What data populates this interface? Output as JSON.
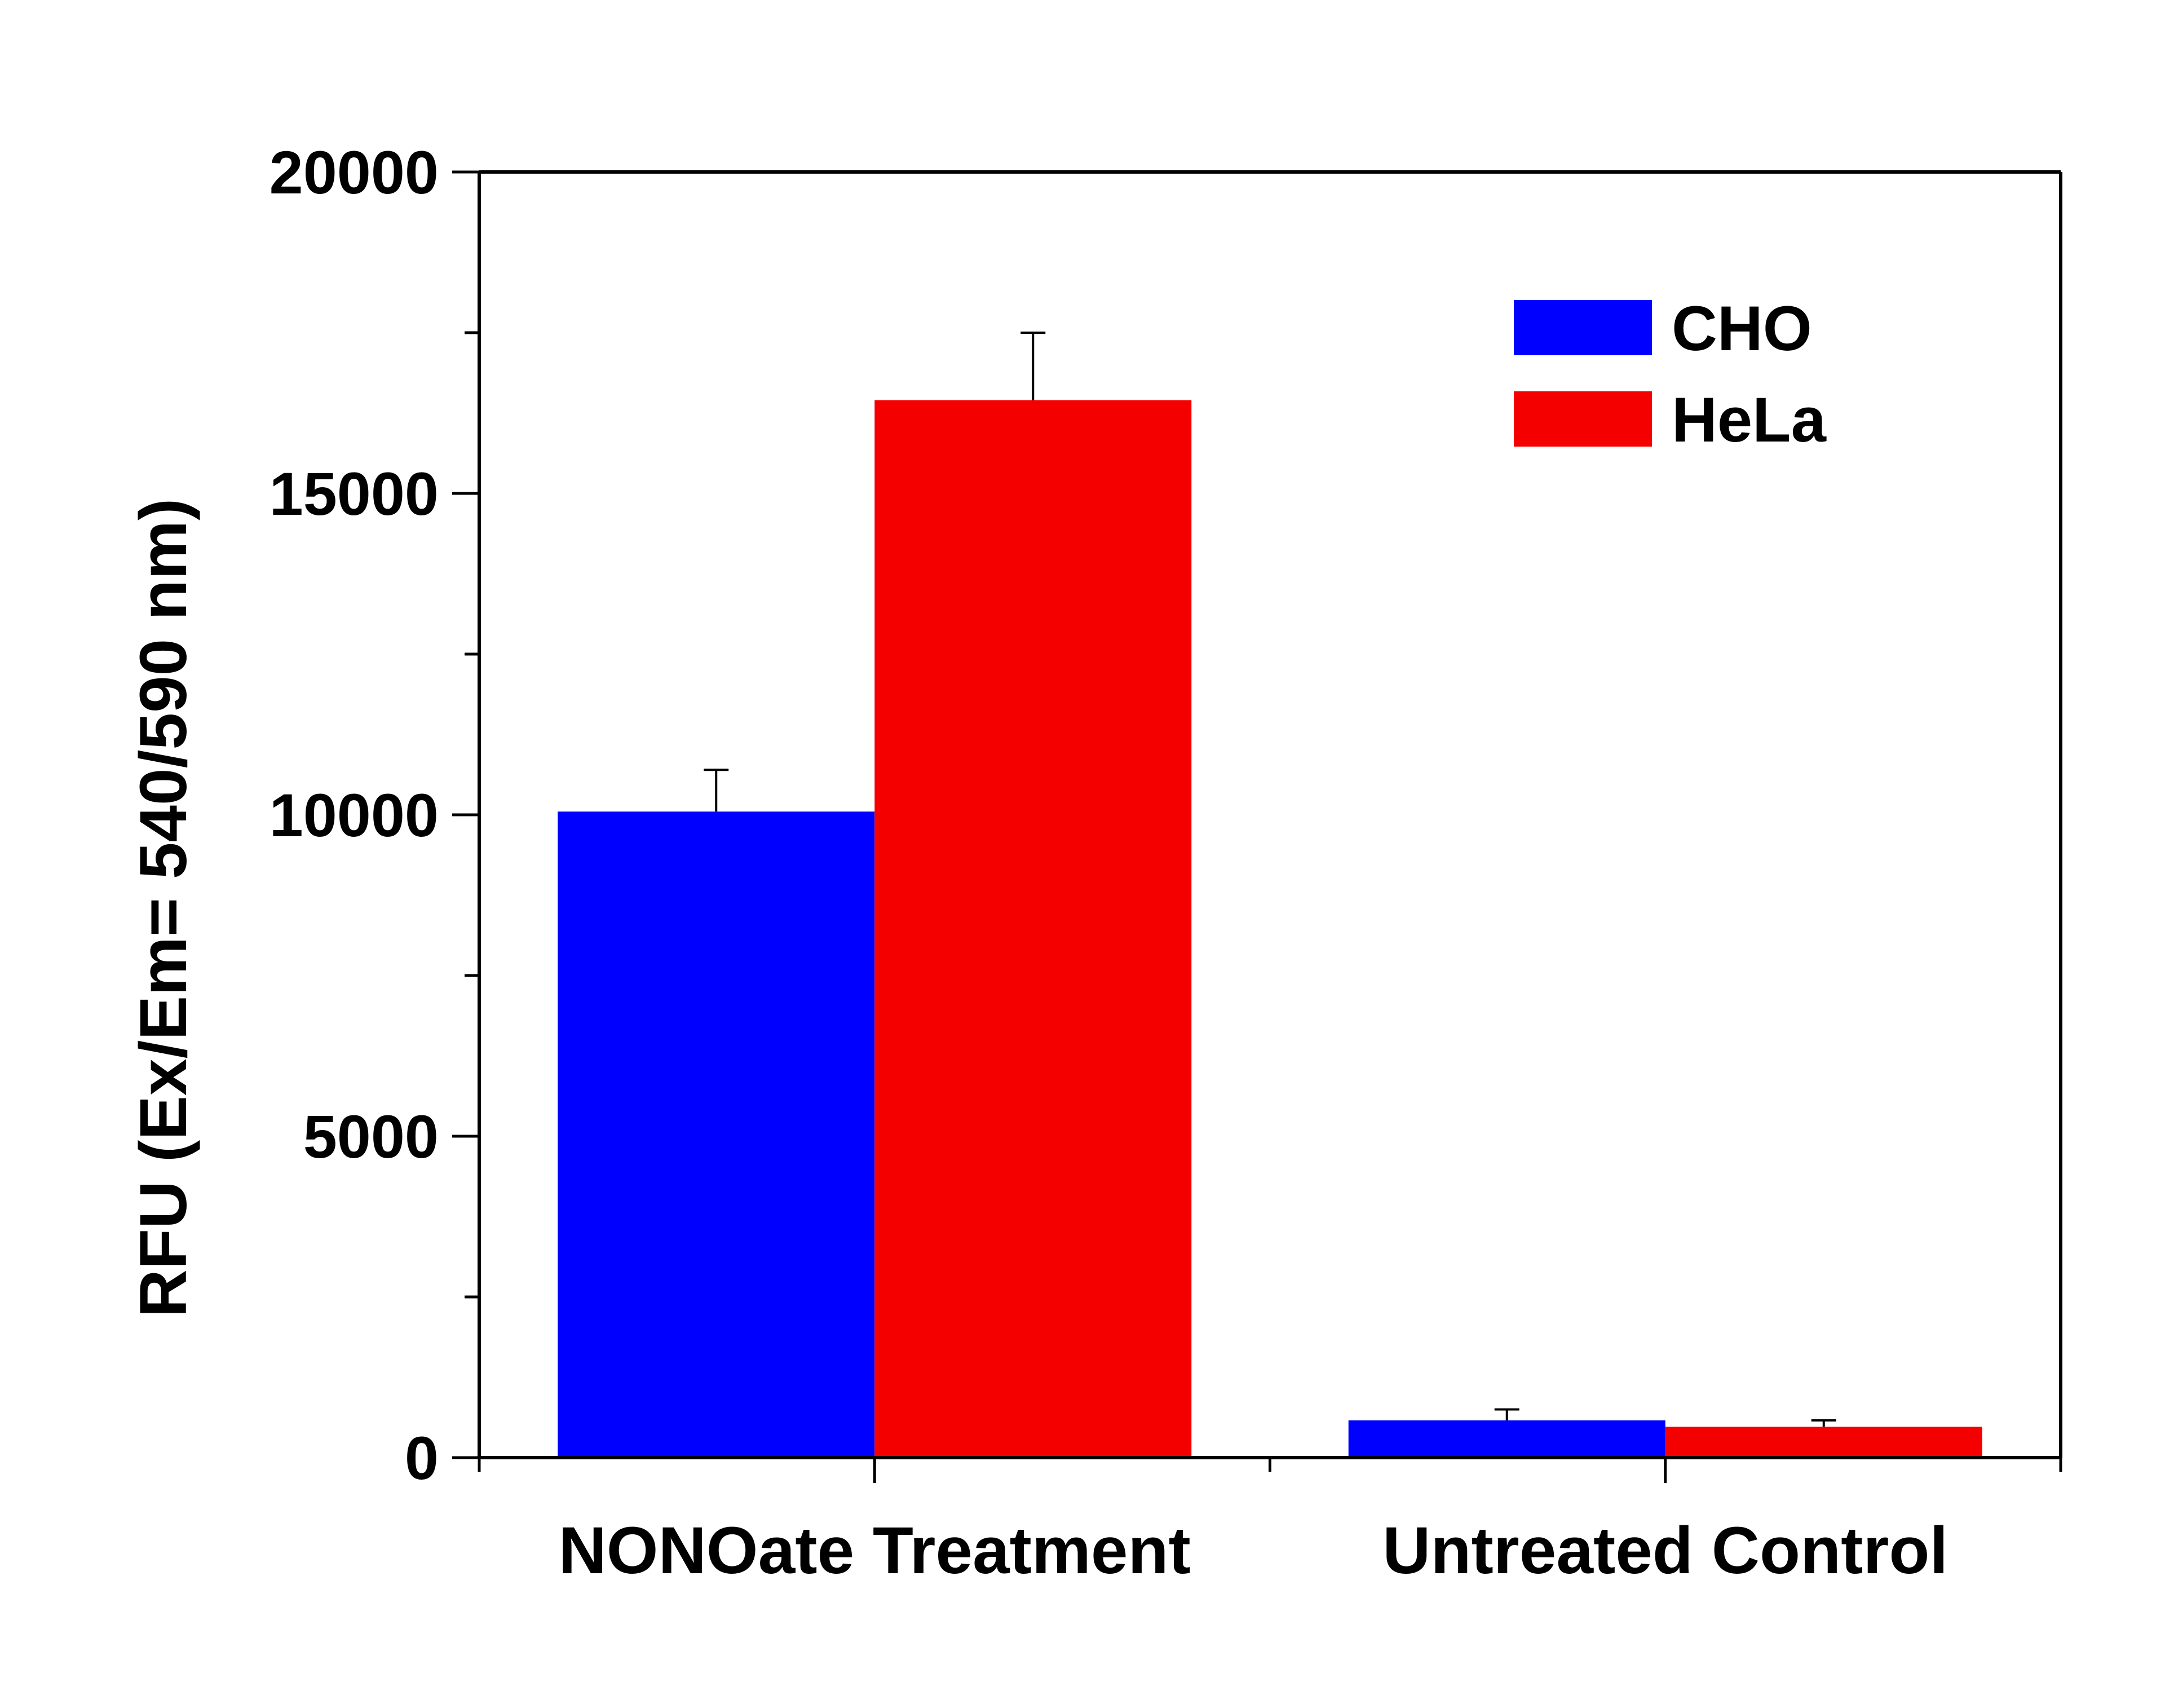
{
  "chart_data": {
    "type": "bar",
    "title": "",
    "xlabel": "",
    "ylabel": "RFU (Ex/Em= 540/590 nm)",
    "categories": [
      "NONOate Treatment",
      "Untreated Control"
    ],
    "ylim": [
      0,
      20000
    ],
    "y_major_ticks": [
      0,
      5000,
      10000,
      15000,
      20000
    ],
    "y_major_tick_labels": [
      "0",
      "5000",
      "10000",
      "15000",
      "20000"
    ],
    "y_minor_ticks": [
      2500,
      7500,
      12500,
      17500
    ],
    "grid": false,
    "legend_position": "top-right",
    "series": [
      {
        "name": "CHO",
        "color": "#0000FF",
        "values": [
          10050,
          580
        ],
        "errors": [
          650,
          170
        ]
      },
      {
        "name": "HeLa",
        "color": "#F50000",
        "values": [
          16450,
          480
        ],
        "errors": [
          1050,
          100
        ]
      }
    ]
  }
}
